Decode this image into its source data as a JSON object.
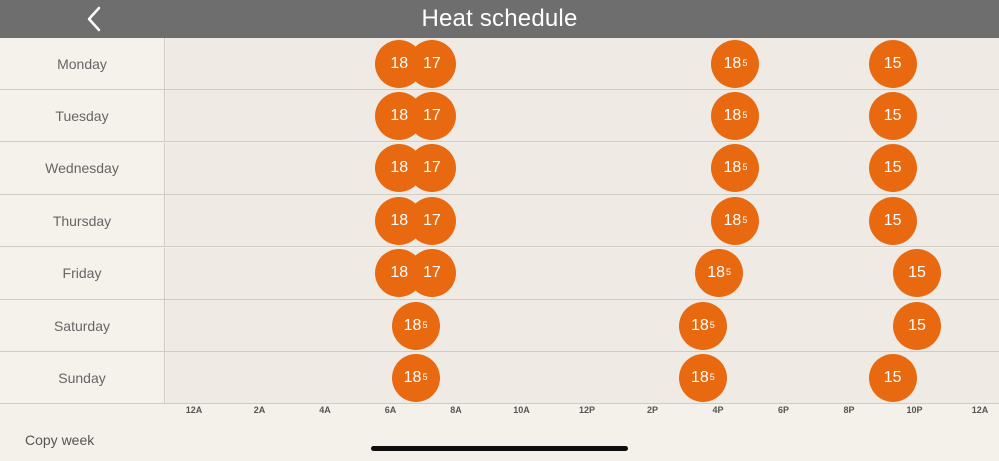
{
  "header": {
    "title": "Heat schedule",
    "back_icon": "chevron-left-icon"
  },
  "colors": {
    "accent": "#e8690f",
    "header_bg": "#6e6e6e",
    "background": "#f4f0ea"
  },
  "days": [
    {
      "label": "Monday",
      "events": [
        {
          "time": "6:40 AM",
          "hour": 6.67,
          "whole": "18",
          "fraction": ""
        },
        {
          "time": "7:40 AM",
          "hour": 7.67,
          "whole": "17",
          "fraction": ""
        },
        {
          "time": "5:00 PM",
          "hour": 17.0,
          "whole": "18",
          "fraction": "5"
        },
        {
          "time": "9:50 PM",
          "hour": 21.83,
          "whole": "15",
          "fraction": ""
        }
      ]
    },
    {
      "label": "Tuesday",
      "events": [
        {
          "time": "6:40 AM",
          "hour": 6.67,
          "whole": "18",
          "fraction": ""
        },
        {
          "time": "7:40 AM",
          "hour": 7.67,
          "whole": "17",
          "fraction": ""
        },
        {
          "time": "5:00 PM",
          "hour": 17.0,
          "whole": "18",
          "fraction": "5"
        },
        {
          "time": "9:50 PM",
          "hour": 21.83,
          "whole": "15",
          "fraction": ""
        }
      ]
    },
    {
      "label": "Wednesday",
      "events": [
        {
          "time": "6:40 AM",
          "hour": 6.67,
          "whole": "18",
          "fraction": ""
        },
        {
          "time": "7:40 AM",
          "hour": 7.67,
          "whole": "17",
          "fraction": ""
        },
        {
          "time": "5:00 PM",
          "hour": 17.0,
          "whole": "18",
          "fraction": "5"
        },
        {
          "time": "9:50 PM",
          "hour": 21.83,
          "whole": "15",
          "fraction": ""
        }
      ]
    },
    {
      "label": "Thursday",
      "events": [
        {
          "time": "6:40 AM",
          "hour": 6.67,
          "whole": "18",
          "fraction": ""
        },
        {
          "time": "7:40 AM",
          "hour": 7.67,
          "whole": "17",
          "fraction": ""
        },
        {
          "time": "5:00 PM",
          "hour": 17.0,
          "whole": "18",
          "fraction": "5"
        },
        {
          "time": "9:50 PM",
          "hour": 21.83,
          "whole": "15",
          "fraction": ""
        }
      ]
    },
    {
      "label": "Friday",
      "events": [
        {
          "time": "6:40 AM",
          "hour": 6.67,
          "whole": "18",
          "fraction": ""
        },
        {
          "time": "7:40 AM",
          "hour": 7.67,
          "whole": "17",
          "fraction": ""
        },
        {
          "time": "4:30 PM",
          "hour": 16.5,
          "whole": "18",
          "fraction": "5"
        },
        {
          "time": "10:35 PM",
          "hour": 22.58,
          "whole": "15",
          "fraction": ""
        }
      ]
    },
    {
      "label": "Saturday",
      "events": [
        {
          "time": "7:10 AM",
          "hour": 7.17,
          "whole": "18",
          "fraction": "5"
        },
        {
          "time": "4:00 PM",
          "hour": 16.0,
          "whole": "18",
          "fraction": "5"
        },
        {
          "time": "10:35 PM",
          "hour": 22.58,
          "whole": "15",
          "fraction": ""
        }
      ]
    },
    {
      "label": "Sunday",
      "events": [
        {
          "time": "7:10 AM",
          "hour": 7.17,
          "whole": "18",
          "fraction": "5"
        },
        {
          "time": "4:00 PM",
          "hour": 16.0,
          "whole": "18",
          "fraction": "5"
        },
        {
          "time": "9:50 PM",
          "hour": 21.83,
          "whole": "15",
          "fraction": ""
        }
      ]
    }
  ],
  "axis_labels": [
    "12A",
    "2A",
    "4A",
    "6A",
    "8A",
    "10A",
    "12P",
    "2P",
    "4P",
    "6P",
    "8P",
    "10P",
    "12A"
  ],
  "footer": {
    "copy_week": "Copy week"
  }
}
